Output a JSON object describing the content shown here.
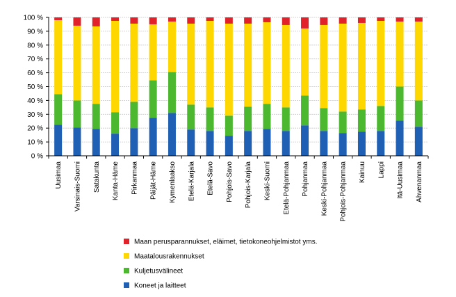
{
  "chart_data": {
    "type": "bar",
    "stacked": true,
    "percent_stacked": true,
    "grid": true,
    "legend_position": "bottom",
    "ylim": [
      0,
      100
    ],
    "y_ticks": [
      0,
      10,
      20,
      30,
      40,
      50,
      60,
      70,
      80,
      90,
      100
    ],
    "y_tick_suffix": " %",
    "categories": [
      "Uusimaa",
      "Varsinais-Suomi",
      "Satakunta",
      "Kanta-Häme",
      "Pirkanmaa",
      "Päijät-Häme",
      "Kymenlaakso",
      "Etelä-Karjala",
      "Etelä-Savo",
      "Pohjois-Savo",
      "Pohjois-Karjala",
      "Keski-Suomi",
      "Etelä-Pohjanmaa",
      "Pohjanmaa",
      "Keski-Pohjanmaa",
      "Pohjois-Pohjanmaa",
      "Kainuu",
      "Lappi",
      "Itä-Uusimaa",
      "Ahvenanmaa"
    ],
    "series": [
      {
        "name": "Koneet ja laitteet",
        "color": "#1f5fb4",
        "values": [
          22.5,
          20.5,
          19.5,
          16,
          20,
          27.5,
          31,
          19,
          18,
          14.5,
          18,
          19.5,
          18,
          22,
          18,
          16.5,
          17.5,
          18,
          25.5,
          21
        ]
      },
      {
        "name": "Kuljetusvälineet",
        "color": "#4cb830",
        "values": [
          22,
          19.5,
          18,
          15.5,
          19,
          27,
          29.5,
          18,
          17,
          14.5,
          17.5,
          18,
          17,
          21.5,
          16.5,
          15.5,
          16,
          18,
          24.5,
          19
        ]
      },
      {
        "name": "Maatalousrakennukset",
        "color": "#ffd700",
        "values": [
          53.5,
          54,
          56,
          66,
          56.5,
          40.5,
          36.5,
          58.5,
          62.5,
          66.5,
          60,
          59,
          59.5,
          48.5,
          60,
          63.5,
          62.5,
          61.5,
          47,
          57
        ]
      },
      {
        "name": "Maan perusparannukset, eläimet, tietokoneohjelmistot yms.",
        "color": "#e2222b",
        "values": [
          2,
          6,
          6.5,
          2.5,
          4.5,
          5,
          3,
          4.5,
          2.5,
          4.5,
          4.5,
          3.5,
          5.5,
          8,
          5.5,
          4.5,
          4,
          2.5,
          3,
          3
        ]
      }
    ]
  }
}
